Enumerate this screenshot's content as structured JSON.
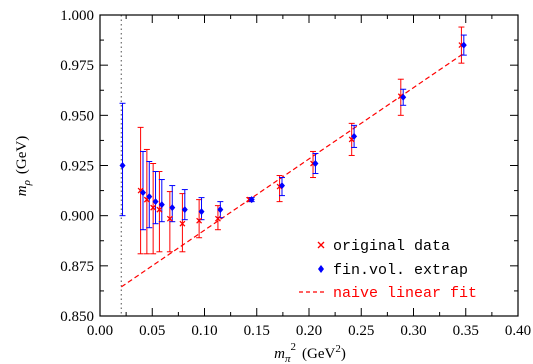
{
  "chart_data": {
    "type": "scatter",
    "xlim": [
      0.0,
      0.4
    ],
    "ylim": [
      0.85,
      1.0
    ],
    "x_ticks": [
      "0.00",
      "0.05",
      "0.10",
      "0.15",
      "0.20",
      "0.25",
      "0.30",
      "0.35",
      "0.40"
    ],
    "y_ticks": [
      "0.850",
      "0.875",
      "0.900",
      "0.925",
      "0.950",
      "0.975",
      "1.000"
    ],
    "xlabel": {
      "main": "m",
      "sub": "π",
      "sup": "2",
      "units": "(GeV",
      "units_sup": "2",
      "units_close": ")"
    },
    "ylabel": {
      "main": "m",
      "sub": "ρ",
      "units": "(GeV)"
    },
    "vertical_marker_x": 0.0204,
    "series": [
      {
        "name": "original data",
        "marker": "x",
        "color": "#ff0000",
        "points": [
          {
            "x": 0.04,
            "y": 0.9125,
            "lo": 0.881,
            "hi": 0.944
          },
          {
            "x": 0.046,
            "y": 0.908,
            "lo": 0.881,
            "hi": 0.933
          },
          {
            "x": 0.052,
            "y": 0.904,
            "lo": 0.881,
            "hi": 0.926
          },
          {
            "x": 0.058,
            "y": 0.903,
            "lo": 0.882,
            "hi": 0.922
          },
          {
            "x": 0.068,
            "y": 0.8985,
            "lo": 0.882,
            "hi": 0.912
          },
          {
            "x": 0.08,
            "y": 0.896,
            "lo": 0.882,
            "hi": 0.911
          },
          {
            "x": 0.096,
            "y": 0.8975,
            "lo": 0.889,
            "hi": 0.908
          },
          {
            "x": 0.114,
            "y": 0.8985,
            "lo": 0.893,
            "hi": 0.905
          },
          {
            "x": 0.144,
            "y": 0.908,
            "lo": 0.907,
            "hi": 0.909
          },
          {
            "x": 0.173,
            "y": 0.9145,
            "lo": 0.907,
            "hi": 0.92
          },
          {
            "x": 0.205,
            "y": 0.926,
            "lo": 0.919,
            "hi": 0.932
          },
          {
            "x": 0.242,
            "y": 0.938,
            "lo": 0.93,
            "hi": 0.946
          },
          {
            "x": 0.289,
            "y": 0.9595,
            "lo": 0.95,
            "hi": 0.968
          },
          {
            "x": 0.347,
            "y": 0.985,
            "lo": 0.976,
            "hi": 0.994
          }
        ]
      },
      {
        "name": "fin.vol. extrap",
        "marker": "diamond",
        "color": "#0000ff",
        "points": [
          {
            "x": 0.0204,
            "y": 0.925,
            "lo": 0.9,
            "hi": 0.956
          },
          {
            "x": 0.04,
            "y": 0.9115,
            "lo": 0.893,
            "hi": 0.932
          },
          {
            "x": 0.046,
            "y": 0.9095,
            "lo": 0.894,
            "hi": 0.927
          },
          {
            "x": 0.052,
            "y": 0.907,
            "lo": 0.896,
            "hi": 0.922
          },
          {
            "x": 0.058,
            "y": 0.9055,
            "lo": 0.897,
            "hi": 0.918
          },
          {
            "x": 0.068,
            "y": 0.904,
            "lo": 0.897,
            "hi": 0.915
          },
          {
            "x": 0.08,
            "y": 0.903,
            "lo": 0.898,
            "hi": 0.913
          },
          {
            "x": 0.096,
            "y": 0.902,
            "lo": 0.898,
            "hi": 0.909
          },
          {
            "x": 0.114,
            "y": 0.903,
            "lo": 0.899,
            "hi": 0.907
          },
          {
            "x": 0.144,
            "y": 0.908,
            "lo": 0.907,
            "hi": 0.909
          },
          {
            "x": 0.173,
            "y": 0.915,
            "lo": 0.91,
            "hi": 0.919
          },
          {
            "x": 0.205,
            "y": 0.926,
            "lo": 0.921,
            "hi": 0.931
          },
          {
            "x": 0.242,
            "y": 0.9395,
            "lo": 0.934,
            "hi": 0.945
          },
          {
            "x": 0.289,
            "y": 0.959,
            "lo": 0.955,
            "hi": 0.963
          },
          {
            "x": 0.347,
            "y": 0.985,
            "lo": 0.98,
            "hi": 0.99
          }
        ]
      }
    ],
    "fit": {
      "name": "naive linear fit",
      "style": "dashed",
      "color": "#ff0000",
      "x": [
        0.0204,
        0.347
      ],
      "y": [
        0.8645,
        0.9805
      ]
    },
    "legend": {
      "position": "bottom-right",
      "entries": [
        "original data",
        "fin.vol. extrap",
        "naive linear fit"
      ]
    }
  }
}
